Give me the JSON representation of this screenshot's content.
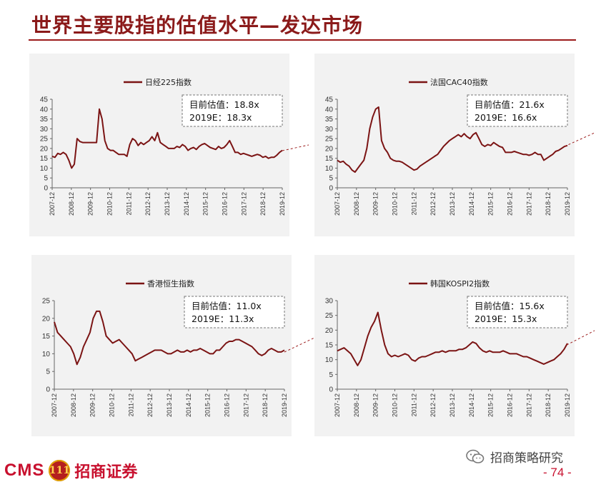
{
  "page": {
    "title": "世界主要股指的估值水平—发达市场",
    "page_number": "- 74 -",
    "footer_brand_latin": "CMS",
    "footer_brand_coin": "111",
    "footer_brand_cn": "招商证券",
    "footer_wechat": "招商策略研究",
    "colors": {
      "title": "#8b1a1a",
      "series": "#7b1414",
      "brand": "#c8102e",
      "panel_bg": "#f2f2f2"
    }
  },
  "chart_data": [
    {
      "type": "line",
      "x_labels": [
        "2007-12",
        "2008-12",
        "2009-12",
        "2010-12",
        "2011-12",
        "2012-12",
        "2013-12",
        "2014-12",
        "2015-12",
        "2016-12",
        "2017-12",
        "2018-12",
        "2019-12"
      ],
      "series": [
        {
          "name": "日经225指数",
          "values": [
            16,
            15.5,
            17.5,
            17,
            18,
            17,
            14,
            10,
            12,
            25,
            23.5,
            23,
            23,
            23,
            23,
            23,
            23,
            40,
            35,
            24,
            20,
            19,
            19,
            18,
            17,
            17,
            17,
            16,
            22,
            25,
            24,
            21.5,
            23,
            22,
            23,
            24,
            26,
            24,
            28,
            23,
            22,
            21,
            20,
            20,
            20,
            21,
            20.5,
            22,
            21,
            19,
            20,
            20.5,
            19.5,
            21,
            22,
            22.5,
            21.5,
            20.5,
            20,
            19.5,
            21,
            20,
            20.5,
            22,
            24,
            21,
            18,
            18,
            17,
            17.5,
            17,
            16.5,
            16,
            16.5,
            17,
            16.5,
            15.5,
            16,
            15,
            15.5,
            15.5,
            16.5,
            18,
            19
          ]
        }
      ],
      "ylim": [
        0,
        45
      ],
      "yticks": [
        0,
        5,
        10,
        15,
        20,
        25,
        30,
        35,
        40,
        45
      ],
      "grid": false,
      "legend": "top",
      "annotation": {
        "line1": "目前估值：18.8x",
        "line2": "2019E：18.3x"
      }
    },
    {
      "type": "line",
      "x_labels": [
        "2007-12",
        "2008-12",
        "2009-12",
        "2010-12",
        "2011-12",
        "2012-12",
        "2013-12",
        "2014-12",
        "2015-12",
        "2016-12",
        "2017-12",
        "2018-12",
        "2019-12"
      ],
      "series": [
        {
          "name": "法国CAC40指数",
          "values": [
            14,
            13,
            13.5,
            12,
            11,
            9,
            8,
            10,
            12,
            14,
            20,
            30,
            36,
            40,
            41,
            24,
            20,
            18,
            15,
            14,
            13.5,
            13.5,
            13,
            12,
            11,
            10,
            9,
            9.5,
            11,
            12,
            13,
            14,
            15,
            16,
            17,
            19,
            21,
            22.5,
            24,
            25,
            26,
            27,
            26,
            27.5,
            26,
            25,
            27,
            28,
            25,
            22,
            21,
            22,
            21.5,
            23,
            22,
            21,
            20.5,
            18,
            18,
            18,
            18.5,
            18,
            17.5,
            17,
            17,
            16.5,
            17,
            18,
            17,
            17,
            14,
            15,
            16,
            17,
            18.5,
            19,
            20,
            21,
            21.5
          ]
        }
      ],
      "ylim": [
        0,
        45
      ],
      "yticks": [
        0,
        5,
        10,
        15,
        20,
        25,
        30,
        35,
        40,
        45
      ],
      "grid": false,
      "legend": "top",
      "annotation": {
        "line1": "目前估值：21.6x",
        "line2": "2019E：16.6x"
      }
    },
    {
      "type": "line",
      "x_labels": [
        "2007-12",
        "2008-12",
        "2009-12",
        "2010-12",
        "2011-12",
        "2012-12",
        "2013-12",
        "2014-12",
        "2015-12",
        "2016-12",
        "2017-12",
        "2018-12",
        "2019-12"
      ],
      "series": [
        {
          "name": "香港恒生指数",
          "values": [
            19,
            16,
            15,
            14,
            13,
            12,
            10,
            7,
            9,
            12,
            14,
            16,
            20,
            22,
            22,
            19,
            15,
            14,
            13,
            13.5,
            14,
            13,
            12,
            11,
            10,
            8,
            8.5,
            9,
            9.5,
            10,
            10.5,
            11,
            11,
            11,
            10.5,
            10,
            10,
            10.5,
            11,
            10.5,
            10.5,
            11,
            10.5,
            11,
            11,
            11.5,
            11,
            10.5,
            10,
            10,
            11,
            11,
            12,
            13,
            13.5,
            13.5,
            14,
            14,
            13.5,
            13,
            12.5,
            12,
            11,
            10,
            9.5,
            10,
            11,
            11.5,
            11,
            10.5,
            10.5,
            11
          ]
        }
      ],
      "ylim": [
        0,
        25
      ],
      "yticks": [
        0,
        5,
        10,
        15,
        20,
        25
      ],
      "grid": false,
      "legend": "top",
      "annotation": {
        "line1": "目前估值：11.0x",
        "line2": "2019E：11.3x"
      }
    },
    {
      "type": "line",
      "x_labels": [
        "2007-12",
        "2008-12",
        "2009-12",
        "2010-12",
        "2011-12",
        "2012-12",
        "2013-12",
        "2014-12",
        "2015-12",
        "2016-12",
        "2017-12",
        "2018-12",
        "2019-12"
      ],
      "series": [
        {
          "name": "韩国KOSPI2指数",
          "values": [
            13,
            13.5,
            14,
            13,
            12,
            10,
            8,
            10,
            14,
            18,
            21,
            23,
            26,
            20,
            15,
            12,
            11,
            11.5,
            11,
            11.5,
            12,
            11.5,
            10,
            9.5,
            10.5,
            11,
            11,
            11.5,
            12,
            12.5,
            12.5,
            13,
            12.5,
            13,
            13,
            13,
            13.5,
            13.5,
            14,
            15,
            16,
            15.5,
            14,
            13,
            12.5,
            13,
            12.5,
            12.5,
            12.5,
            13,
            12.5,
            12,
            12,
            12,
            11.5,
            11,
            11,
            10.5,
            10,
            9.5,
            9,
            8.5,
            9,
            9.5,
            10,
            11,
            12,
            13.5,
            15.5
          ]
        }
      ],
      "ylim": [
        0,
        30
      ],
      "yticks": [
        0,
        5,
        10,
        15,
        20,
        25,
        30
      ],
      "grid": false,
      "legend": "top",
      "annotation": {
        "line1": "目前估值：15.6x",
        "line2": "2019E：15.3x"
      }
    }
  ]
}
